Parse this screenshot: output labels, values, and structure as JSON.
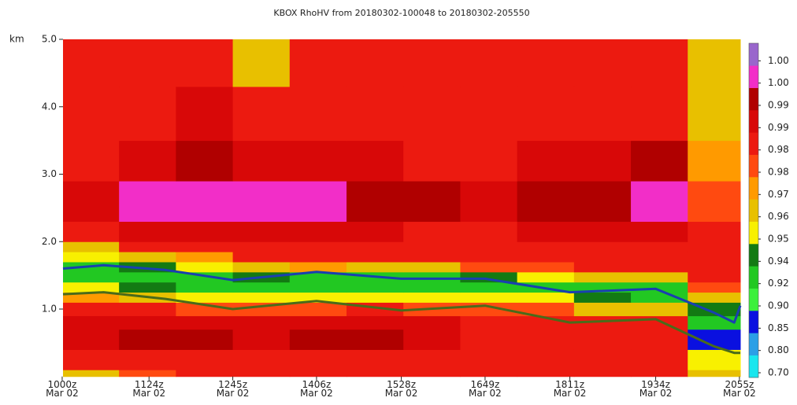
{
  "chart_data": {
    "type": "heatmap",
    "title": "KBOX RhoHV from 20180302-100048 to 20180302-205550",
    "y_label": "km",
    "xlim": [
      600.8,
      1255.83
    ],
    "xticks": [
      {
        "value": 600,
        "label": "1000z\nMar 02"
      },
      {
        "value": 684,
        "label": "1124z\nMar 02"
      },
      {
        "value": 765,
        "label": "1245z\nMar 02"
      },
      {
        "value": 846,
        "label": "1406z\nMar 02"
      },
      {
        "value": 928,
        "label": "1528z\nMar 02"
      },
      {
        "value": 1009,
        "label": "1649z\nMar 02"
      },
      {
        "value": 1091,
        "label": "1811z\nMar 02"
      },
      {
        "value": 1174,
        "label": "1934z\nMar 02"
      },
      {
        "value": 1255,
        "label": "2055z\nMar 02"
      }
    ],
    "ylim": [
      0,
      5
    ],
    "yticks": [
      {
        "value": 1,
        "label": "1.0"
      },
      {
        "value": 2,
        "label": "2.0"
      },
      {
        "value": 3,
        "label": "3.0"
      },
      {
        "value": 4,
        "label": "4.0"
      },
      {
        "value": 5,
        "label": "5.0"
      }
    ],
    "x_edges": [
      600.8,
      655,
      710,
      765,
      820,
      875,
      930,
      985,
      1040,
      1095,
      1150,
      1205,
      1255.83
    ],
    "y_edges": [
      0,
      0.1,
      0.4,
      0.7,
      0.9,
      1.1,
      1.25,
      1.4,
      1.55,
      1.7,
      1.85,
      2.0,
      2.3,
      2.9,
      3.5,
      4.3,
      5.0
    ],
    "z": [
      [
        0.968,
        0.976,
        0.983,
        0.983,
        0.983,
        0.983,
        0.983,
        0.983,
        0.983,
        0.983,
        0.983,
        0.965
      ],
      [
        0.983,
        0.983,
        0.983,
        0.983,
        0.983,
        0.983,
        0.983,
        0.983,
        0.983,
        0.983,
        0.983,
        0.958
      ],
      [
        0.987,
        0.993,
        0.993,
        0.987,
        0.993,
        0.993,
        0.987,
        0.983,
        0.983,
        0.983,
        0.983,
        0.88
      ],
      [
        0.987,
        0.987,
        0.987,
        0.987,
        0.987,
        0.987,
        0.987,
        0.983,
        0.983,
        0.983,
        0.983,
        0.93
      ],
      [
        0.983,
        0.983,
        0.976,
        0.976,
        0.976,
        0.983,
        0.976,
        0.976,
        0.976,
        0.968,
        0.965,
        0.945
      ],
      [
        0.972,
        0.968,
        0.958,
        0.958,
        0.958,
        0.958,
        0.958,
        0.958,
        0.958,
        0.945,
        0.935,
        0.965
      ],
      [
        0.958,
        0.945,
        0.93,
        0.93,
        0.93,
        0.93,
        0.93,
        0.935,
        0.935,
        0.93,
        0.935,
        0.976
      ],
      [
        0.93,
        0.93,
        0.935,
        0.945,
        0.935,
        0.935,
        0.935,
        0.945,
        0.958,
        0.965,
        0.968,
        0.983
      ],
      [
        0.935,
        0.945,
        0.958,
        0.968,
        0.972,
        0.965,
        0.968,
        0.976,
        0.976,
        0.983,
        0.983,
        0.983
      ],
      [
        0.958,
        0.965,
        0.972,
        0.983,
        0.983,
        0.983,
        0.983,
        0.983,
        0.983,
        0.983,
        0.983,
        0.983
      ],
      [
        0.965,
        0.983,
        0.983,
        0.983,
        0.983,
        0.983,
        0.983,
        0.983,
        0.983,
        0.983,
        0.983,
        0.983
      ],
      [
        0.983,
        0.987,
        0.987,
        0.987,
        0.987,
        0.987,
        0.983,
        0.983,
        0.987,
        0.987,
        0.987,
        0.983
      ],
      [
        0.987,
        0.996,
        0.996,
        0.996,
        0.996,
        0.993,
        0.993,
        0.987,
        0.993,
        0.993,
        0.996,
        0.976
      ],
      [
        0.983,
        0.987,
        0.993,
        0.987,
        0.987,
        0.987,
        0.983,
        0.983,
        0.987,
        0.987,
        0.993,
        0.972
      ],
      [
        0.983,
        0.983,
        0.987,
        0.983,
        0.983,
        0.983,
        0.983,
        0.983,
        0.983,
        0.983,
        0.983,
        0.968
      ],
      [
        0.983,
        0.983,
        0.983,
        0.965,
        0.983,
        0.983,
        0.983,
        0.983,
        0.983,
        0.983,
        0.983,
        0.965
      ]
    ],
    "series": [
      {
        "color": "#1a3fb0",
        "x": [
          600.8,
          640,
          700,
          765,
          846,
          928,
          1009,
          1091,
          1174,
          1230,
          1250,
          1255.8
        ],
        "values": [
          1.6,
          1.65,
          1.58,
          1.43,
          1.55,
          1.45,
          1.45,
          1.25,
          1.3,
          0.95,
          0.8,
          1.05
        ]
      },
      {
        "color": "#4a6b1a",
        "x": [
          600.8,
          640,
          700,
          765,
          846,
          928,
          1009,
          1091,
          1174,
          1230,
          1250,
          1255.8
        ],
        "values": [
          1.22,
          1.25,
          1.15,
          1.0,
          1.12,
          0.98,
          1.05,
          0.8,
          0.85,
          0.45,
          0.35,
          0.35
        ]
      }
    ],
    "colorbar_bounds": [
      0.7,
      0.8,
      0.85,
      0.9,
      0.92,
      0.94,
      0.95,
      0.96,
      0.97,
      0.975,
      0.98,
      0.985,
      0.99,
      0.995,
      0.998,
      1.0
    ],
    "colorbar_colors": [
      "#19e6ee",
      "#2b9fe6",
      "#0a10e0",
      "#3cf03c",
      "#22c822",
      "#137a13",
      "#f8f000",
      "#e8c000",
      "#ff9a00",
      "#ff4a10",
      "#ec1a10",
      "#d80808",
      "#b00000",
      "#f22ec8",
      "#9966cc"
    ],
    "colorbar_ticks": [
      {
        "value": 0.7,
        "label": "0.70"
      },
      {
        "value": 0.8,
        "label": "0.80"
      },
      {
        "value": 0.85,
        "label": "0.85"
      },
      {
        "value": 0.9,
        "label": "0.90"
      },
      {
        "value": 0.92,
        "label": "0.92"
      },
      {
        "value": 0.94,
        "label": "0.94"
      },
      {
        "value": 0.95,
        "label": "0.95"
      },
      {
        "value": 0.96,
        "label": "0.96"
      },
      {
        "value": 0.97,
        "label": "0.97"
      },
      {
        "value": 0.975,
        "label": "0.98"
      },
      {
        "value": 0.98,
        "label": "0.98"
      },
      {
        "value": 0.985,
        "label": "0.99"
      },
      {
        "value": 0.99,
        "label": "0.99"
      },
      {
        "value": 0.995,
        "label": "1.00"
      },
      {
        "value": 0.998,
        "label": "1.00"
      }
    ]
  }
}
